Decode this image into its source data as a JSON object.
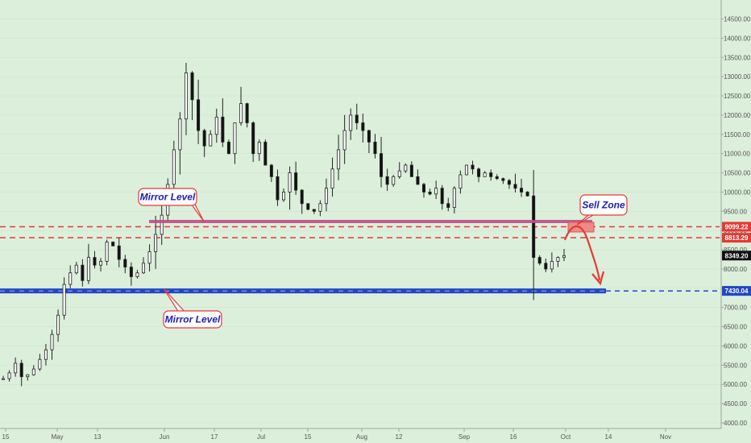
{
  "chart_data": {
    "type": "candlestick",
    "y_axis": {
      "min": 4000,
      "max": 14700,
      "ticks": [
        "4000.00",
        "4500.00",
        "5000.00",
        "5500.00",
        "6000.00",
        "6500.00",
        "7000.00",
        "7500.00",
        "8000.00",
        "8500.00",
        "9000.00",
        "9500.00",
        "10000.00",
        "10500.00",
        "11000.00",
        "11500.00",
        "12000.00",
        "12500.00",
        "13000.00",
        "13500.00",
        "14000.00",
        "14500.00"
      ]
    },
    "x_axis": {
      "labels": [
        "15",
        "May",
        "13",
        "Jun",
        "17",
        "Jul",
        "15",
        "Aug",
        "12",
        "Sep",
        "16",
        "Oct",
        "14",
        "Nov"
      ]
    },
    "levels": [
      {
        "value": 9099.22,
        "label": "9099.22",
        "color": "#e53935",
        "style": "dashed"
      },
      {
        "value": 8813.29,
        "label": "8813.29",
        "color": "#e53935",
        "style": "dashed"
      },
      {
        "value": 7430.04,
        "label": "7430.04",
        "color": "#1f47c4",
        "style": "band"
      }
    ],
    "last_price": {
      "value": 8349.2,
      "label": "8349.20"
    },
    "annotations": [
      {
        "text": "Mirror Level"
      },
      {
        "text": "Mirror Level"
      },
      {
        "text": "Sell Zone"
      }
    ],
    "price_path": [
      [
        0,
        5150
      ],
      [
        6,
        5300
      ],
      [
        12,
        5550
      ],
      [
        16,
        5200
      ],
      [
        22,
        5250
      ],
      [
        28,
        5400
      ],
      [
        34,
        5650
      ],
      [
        40,
        5900
      ],
      [
        46,
        6300
      ],
      [
        52,
        6800
      ],
      [
        56,
        7600
      ],
      [
        60,
        7900
      ],
      [
        64,
        8100
      ],
      [
        68,
        7700
      ],
      [
        72,
        8300
      ],
      [
        76,
        8100
      ],
      [
        80,
        8200
      ],
      [
        84,
        8700
      ],
      [
        88,
        8600
      ],
      [
        92,
        8250
      ],
      [
        96,
        8050
      ],
      [
        100,
        7800
      ],
      [
        104,
        7900
      ],
      [
        108,
        8150
      ],
      [
        112,
        8450
      ],
      [
        116,
        8900
      ],
      [
        120,
        9400
      ],
      [
        124,
        10200
      ],
      [
        128,
        11100
      ],
      [
        130,
        11900
      ],
      [
        132,
        13100
      ],
      [
        134,
        12400
      ],
      [
        136,
        11600
      ],
      [
        138,
        11200
      ],
      [
        140,
        11500
      ],
      [
        142,
        11950
      ],
      [
        144,
        11300
      ],
      [
        146,
        11000
      ],
      [
        148,
        11800
      ],
      [
        150,
        12300
      ],
      [
        152,
        11800
      ],
      [
        154,
        11000
      ],
      [
        156,
        11300
      ],
      [
        158,
        10700
      ],
      [
        160,
        10400
      ],
      [
        162,
        9800
      ],
      [
        164,
        10000
      ],
      [
        166,
        10500
      ],
      [
        168,
        10050
      ],
      [
        170,
        9700
      ],
      [
        172,
        9550
      ],
      [
        174,
        9500
      ],
      [
        176,
        9700
      ],
      [
        178,
        10100
      ],
      [
        180,
        10600
      ],
      [
        182,
        11100
      ],
      [
        184,
        11600
      ],
      [
        186,
        12000
      ],
      [
        188,
        11800
      ],
      [
        190,
        11600
      ],
      [
        192,
        11300
      ],
      [
        194,
        11000
      ],
      [
        196,
        10400
      ],
      [
        198,
        10200
      ],
      [
        200,
        10400
      ],
      [
        202,
        10550
      ],
      [
        204,
        10700
      ],
      [
        206,
        10400
      ],
      [
        208,
        10200
      ],
      [
        210,
        10000
      ],
      [
        212,
        9950
      ],
      [
        214,
        10100
      ],
      [
        216,
        9700
      ],
      [
        218,
        9600
      ],
      [
        220,
        10100
      ],
      [
        222,
        10450
      ],
      [
        224,
        10700
      ],
      [
        226,
        10600
      ],
      [
        228,
        10400
      ],
      [
        230,
        10500
      ],
      [
        232,
        10400
      ],
      [
        234,
        10350
      ],
      [
        236,
        10300
      ],
      [
        238,
        10200
      ],
      [
        240,
        10100
      ],
      [
        242,
        10000
      ],
      [
        244,
        9900
      ],
      [
        246,
        8300
      ],
      [
        248,
        8150
      ],
      [
        250,
        8000
      ],
      [
        252,
        8200
      ],
      [
        254,
        8300
      ],
      [
        256,
        8349
      ]
    ]
  }
}
